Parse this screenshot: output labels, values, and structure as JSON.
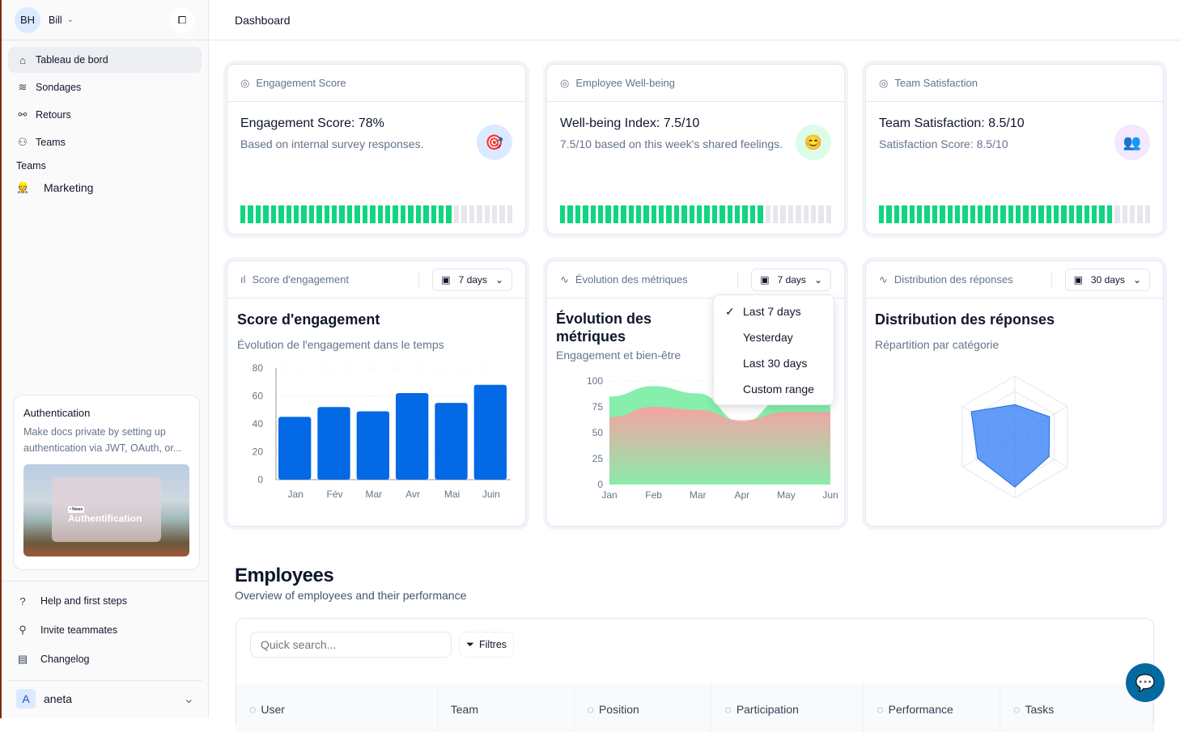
{
  "sidebar": {
    "user_initials": "BH",
    "user_name": "Bill",
    "items": [
      {
        "label": "Tableau de bord",
        "icon": "home-icon"
      },
      {
        "label": "Sondages",
        "icon": "layers-icon"
      },
      {
        "label": "Retours",
        "icon": "plug-icon"
      },
      {
        "label": "Teams",
        "icon": "users-icon"
      }
    ],
    "section_title": "Teams",
    "team": "Marketing",
    "promo": {
      "title": "Authentication",
      "text": "Make docs private by setting up authentication via JWT, OAuth, or...",
      "badge": "• News",
      "image_title": "Authentification"
    },
    "bottom": [
      {
        "label": "Help and first steps",
        "icon": "help-circle-icon"
      },
      {
        "label": "Invite teammates",
        "icon": "user-plus-icon"
      },
      {
        "label": "Changelog",
        "icon": "newspaper-icon"
      }
    ],
    "account": {
      "initial": "A",
      "name": "aneta"
    }
  },
  "header": {
    "title": "Dashboard"
  },
  "kpis": [
    {
      "header": "Engagement Score",
      "title": "Engagement Score: 78%",
      "subtitle": "Based on internal survey responses.",
      "emoji": "🎯",
      "progress": 78,
      "circle": "#dbeafe"
    },
    {
      "header": "Employee Well-being",
      "title": "Well-being Index: 7.5/10",
      "subtitle": "7.5/10 based on this week's shared feelings.",
      "emoji": "😊",
      "progress": 75,
      "circle": "#dcfce7"
    },
    {
      "header": "Team Satisfaction",
      "title": "Team Satisfaction: 8.5/10",
      "subtitle": "Satisfaction Score: 8.5/10",
      "emoji": "👥",
      "progress": 85,
      "circle": "#f3e8ff"
    }
  ],
  "colors": {
    "progress": "#10d67f",
    "bar": "#0369e5",
    "green": "#86efac",
    "red": "#f5a3a3",
    "radar": "#3b82f6"
  },
  "charts": [
    {
      "header": "Score d'engagement",
      "range": "7 days",
      "title": "Score d'engagement",
      "subtitle": "Évolution de l'engagement dans le temps"
    },
    {
      "header": "Évolution des métriques",
      "range": "7 days",
      "title": "Évolution des métriques",
      "subtitle": "Engagement et bien-être"
    },
    {
      "header": "Distribution des réponses",
      "range": "30 days",
      "title": "Distribution des réponses",
      "subtitle": "Répartition par catégorie"
    }
  ],
  "dropdown": {
    "options": [
      "Last 7 days",
      "Yesterday",
      "Last 30 days",
      "Custom range"
    ],
    "selected": 0
  },
  "chart_data": [
    {
      "type": "bar",
      "categories": [
        "Jan",
        "Fév",
        "Mar",
        "Avr",
        "Mai",
        "Juin"
      ],
      "values": [
        45,
        52,
        49,
        62,
        55,
        68
      ],
      "ylim": [
        0,
        80
      ],
      "yticks": [
        "0",
        "20",
        "40",
        "60",
        "80"
      ],
      "grid": true
    },
    {
      "type": "area",
      "categories": [
        "Jan",
        "Feb",
        "Mar",
        "Apr",
        "May",
        "Jun"
      ],
      "series": [
        {
          "values": [
            85,
            95,
            88,
            60,
            85,
            88
          ],
          "color": "#86efac"
        },
        {
          "values": [
            65,
            75,
            72,
            62,
            70,
            70
          ],
          "color": "#f5a3a3"
        }
      ],
      "ylim": [
        0,
        100
      ],
      "yticks": [
        "0",
        "25",
        "50",
        "75",
        "100"
      ],
      "grid": true
    },
    {
      "type": "radar",
      "values": [
        53,
        66,
        65,
        83,
        71,
        83
      ],
      "max": 100
    }
  ],
  "employees": {
    "title": "Employees",
    "subtitle": "Overview of employees and their performance",
    "search_placeholder": "Quick search...",
    "filter": "Filtres",
    "columns": [
      {
        "label": "User",
        "icon": "users-icon"
      },
      {
        "label": "Team",
        "icon": ""
      },
      {
        "label": "Position",
        "icon": "briefcase-icon"
      },
      {
        "label": "Participation",
        "icon": "bar-chart-icon"
      },
      {
        "label": "Performance",
        "icon": "pie-chart-icon"
      },
      {
        "label": "Tasks",
        "icon": "trending-up-icon"
      }
    ]
  }
}
